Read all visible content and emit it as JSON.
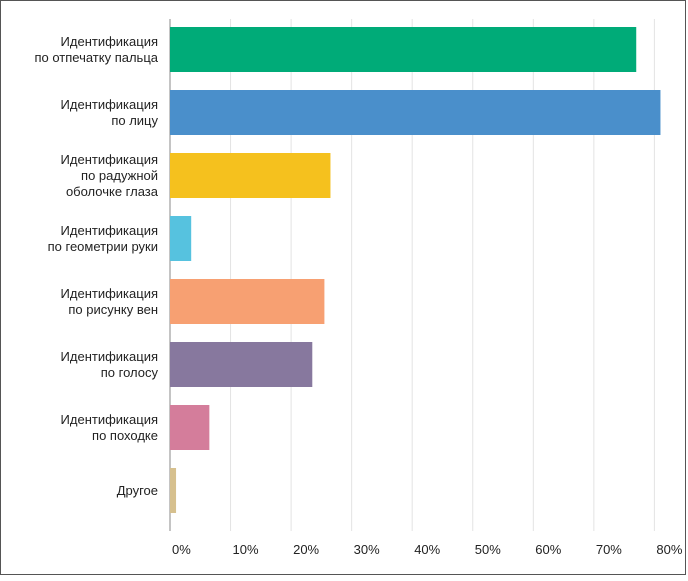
{
  "chart_data": {
    "type": "bar",
    "orientation": "horizontal",
    "title": "",
    "xlabel": "",
    "ylabel": "",
    "xlim": [
      0,
      85
    ],
    "grid": true,
    "categories": [
      [
        "Идентификация",
        "по отпечатку пальца"
      ],
      [
        "Идентификация",
        "по лицу"
      ],
      [
        "Идентификация",
        "по радужной",
        "оболочке глаза"
      ],
      [
        "Идентификация",
        "по геометрии руки"
      ],
      [
        "Идентификация",
        "по рисунку вен"
      ],
      [
        "Идентификация",
        "по голосу"
      ],
      [
        "Идентификация",
        "по походке"
      ],
      [
        "Другое"
      ]
    ],
    "values": [
      77,
      81,
      26.5,
      3.5,
      25.5,
      23.5,
      6.5,
      1
    ],
    "colors": [
      "#00ab78",
      "#4a8fcb",
      "#f5c11e",
      "#56c2df",
      "#f7a072",
      "#87789e",
      "#d47d9b",
      "#d6c08e"
    ],
    "ticks": [
      0,
      10,
      20,
      30,
      40,
      50,
      60,
      70,
      80
    ],
    "tick_labels": [
      "0%",
      "10%",
      "20%",
      "30%",
      "40%",
      "50%",
      "60%",
      "70%",
      "80%"
    ]
  }
}
